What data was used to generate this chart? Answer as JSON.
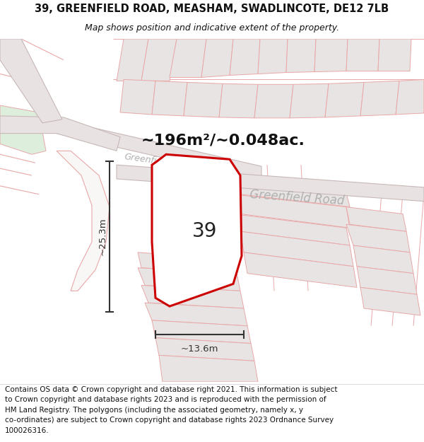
{
  "title_line1": "39, GREENFIELD ROAD, MEASHAM, SWADLINCOTE, DE12 7LB",
  "title_line2": "Map shows position and indicative extent of the property.",
  "area_text": "~196m²/~0.048ac.",
  "label_39": "39",
  "dim_height": "~25.3m",
  "dim_width": "~13.6m",
  "footer_lines": [
    "Contains OS data © Crown copyright and database right 2021. This information is subject",
    "to Crown copyright and database rights 2023 and is reproduced with the permission of",
    "HM Land Registry. The polygons (including the associated geometry, namely x, y",
    "co-ordinates) are subject to Crown copyright and database rights 2023 Ordnance Survey",
    "100026316."
  ],
  "bg_color": "#f9f6f6",
  "plot_outline_color": "#cc0000",
  "plot_fill_color": "#ffffff",
  "road_fill": "#e8e2e2",
  "road_edge": "#c8b8b8",
  "block_fill": "#e8e4e4",
  "block_edge": "#d0b8b8",
  "pink_line": "#e8a8a8",
  "green_fill": "#ddeedd",
  "dim_color": "#333333",
  "street_label_color": "#aaaaaa",
  "title_fontsize": 10.5,
  "subtitle_fontsize": 9,
  "area_fontsize": 16,
  "label_fontsize": 20,
  "footer_fontsize": 7.5,
  "street_fontsize": 11,
  "street_fontsize2": 12
}
